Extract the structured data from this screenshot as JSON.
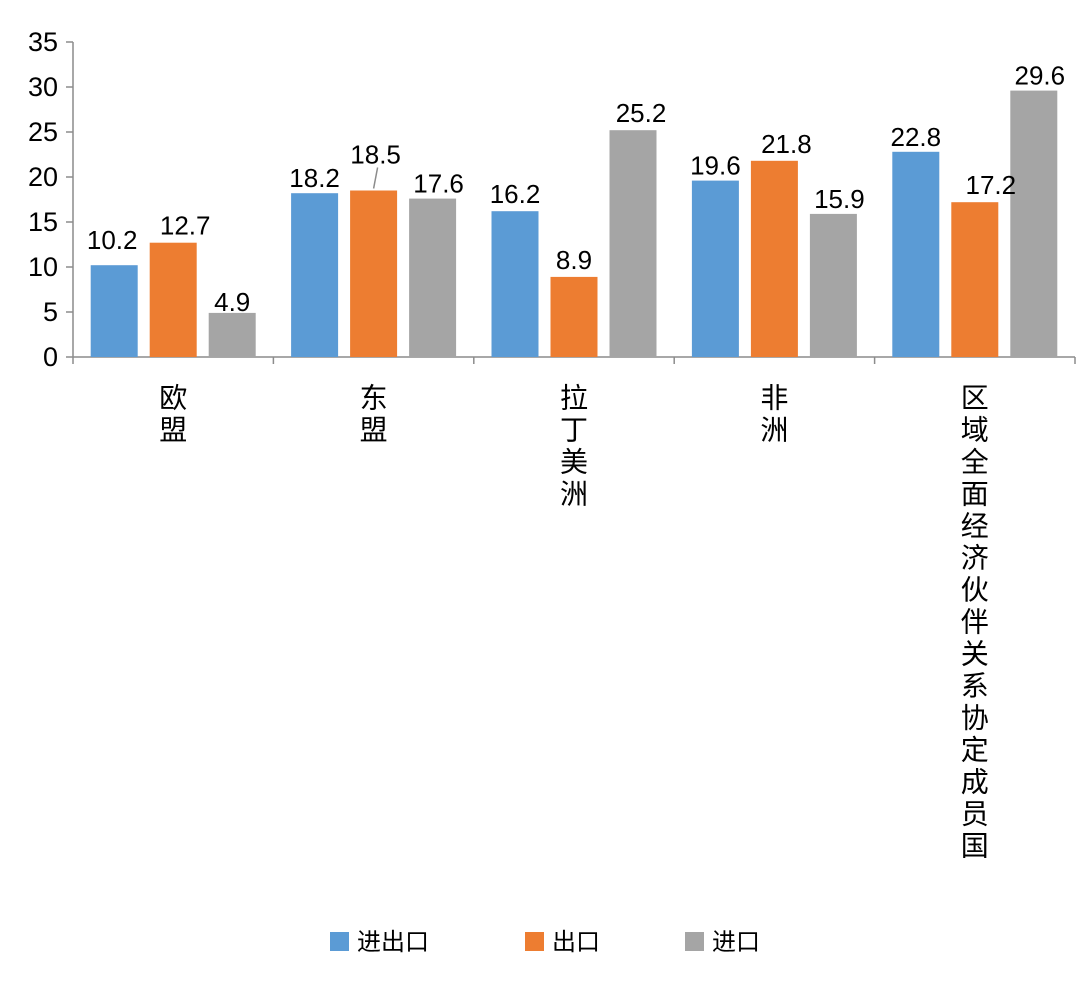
{
  "chart_data": {
    "type": "bar",
    "title": "",
    "xlabel": "",
    "ylabel": "",
    "ylim": [
      0,
      35
    ],
    "yticks": [
      0,
      5,
      10,
      15,
      20,
      25,
      30,
      35
    ],
    "grid": false,
    "legend_position": "bottom",
    "categories": [
      "欧盟",
      "东盟",
      "拉丁美洲",
      "非洲",
      "区域全面经济伙伴关系协定成员国"
    ],
    "series": [
      {
        "name": "进出口",
        "color": "#5b9bd5",
        "values": [
          10.2,
          18.2,
          16.2,
          19.6,
          22.8
        ]
      },
      {
        "name": "出口",
        "color": "#ed7d31",
        "values": [
          12.7,
          18.5,
          8.9,
          21.8,
          17.2
        ]
      },
      {
        "name": "进口",
        "color": "#a5a5a5",
        "values": [
          4.9,
          17.6,
          25.2,
          15.9,
          29.6
        ]
      }
    ],
    "data_labels": true
  }
}
